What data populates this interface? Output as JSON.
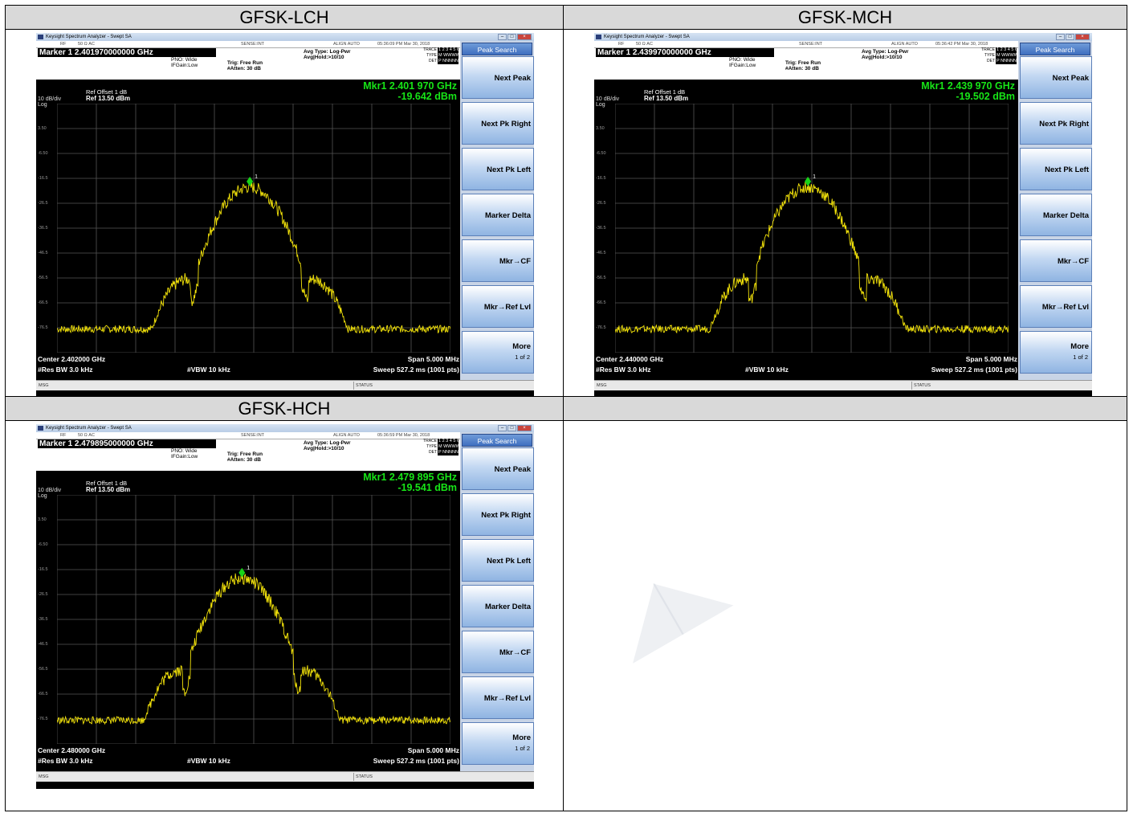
{
  "cells": [
    {
      "id": "lch",
      "title": "GFSK-LCH",
      "marker_line": "Marker 1 2.401970000000 GHz",
      "mkr_freq": "Mkr1 2.401 970 GHz",
      "mkr_level": "-19.642 dBm",
      "center": "Center 2.402000 GHz",
      "timestamp": "05:36:09 PM Mar 30, 2018",
      "peak_x": 0.49,
      "peak_db": -20
    },
    {
      "id": "mch",
      "title": "GFSK-MCH",
      "marker_line": "Marker 1 2.439970000000 GHz",
      "mkr_freq": "Mkr1 2.439 970 GHz",
      "mkr_level": "-19.502 dBm",
      "center": "Center 2.440000 GHz",
      "timestamp": "05:36:42 PM Mar 30, 2018",
      "peak_x": 0.49,
      "peak_db": -20
    },
    {
      "id": "hch",
      "title": "GFSK-HCH",
      "marker_line": "Marker 1 2.479895000000 GHz",
      "mkr_freq": "Mkr1 2.479 895 GHz",
      "mkr_level": "-19.541 dBm",
      "center": "Center 2.480000 GHz",
      "timestamp": "05:36:59 PM Mar 30, 2018",
      "peak_x": 0.47,
      "peak_db": -20
    }
  ],
  "common": {
    "window_title": "Keysight Spectrum Analyzer - Swept SA",
    "menu_rf": "RF",
    "menu_ohm": "50 Ω  AC",
    "sense": "SENSE:INT",
    "align": "ALIGN AUTO",
    "pno": "PNO: Wide",
    "ifgain": "IFGain:Low",
    "trig": "Trig: Free Run",
    "atten": "#Atten: 30 dB",
    "avg_type": "Avg Type: Log-Pwr",
    "avg_hold": "Avg|Hold:>10/10",
    "trace_label": "TRACE",
    "type_label": "TYPE",
    "det_label": "DET",
    "trace_nums": "1 2 3 4 5 6",
    "type_vals": "M WWWWW",
    "det_vals": "P NNNNN",
    "ref_offset": "Ref Offset 1 dB",
    "ref_level": "Ref 13.50 dBm",
    "scale": "10 dB/div",
    "log": "Log",
    "y_ticks": [
      "3.50",
      "-6.50",
      "-16.5",
      "-26.5",
      "-36.5",
      "-46.5",
      "-56.5",
      "-66.5",
      "-76.5"
    ],
    "res_bw": "#Res BW 3.0 kHz",
    "vbw": "#VBW 10 kHz",
    "span": "Span 5.000 MHz",
    "sweep": "Sweep  527.2 ms (1001 pts)",
    "msg": "MSG",
    "status": "STATUS",
    "marker_tag": "1"
  },
  "softkeys": {
    "title": "Peak Search",
    "buttons": [
      "Next Peak",
      "Next Pk Right",
      "Next Pk Left",
      "Marker Delta",
      "Mkr→CF",
      "Mkr→Ref Lvl"
    ],
    "more": "More",
    "more_sub": "1 of 2"
  },
  "colors": {
    "trace": "#f2e20a",
    "marker": "#18d418",
    "readout": "#17e517"
  }
}
